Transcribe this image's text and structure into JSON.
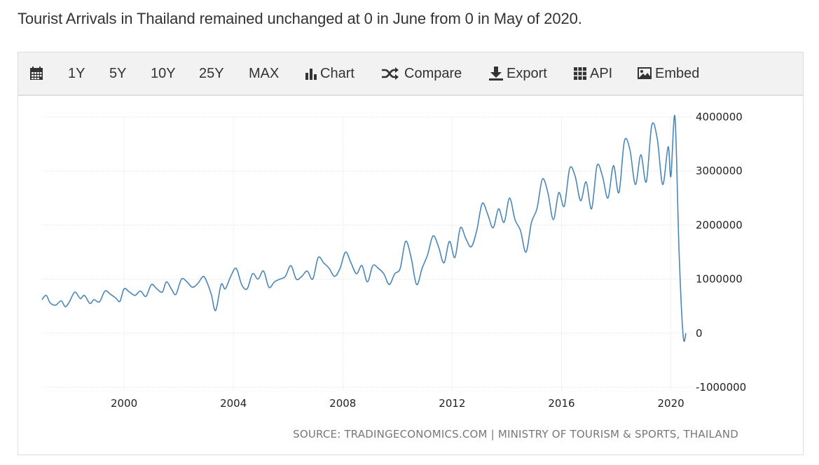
{
  "headline": "Tourist Arrivals in Thailand remained unchanged at 0 in June from 0 in May of 2020.",
  "toolbar": {
    "calendar_icon": "calendar-icon",
    "ranges": [
      "1Y",
      "5Y",
      "10Y",
      "25Y",
      "MAX"
    ],
    "chart_label": "Chart",
    "compare_label": "Compare",
    "export_label": "Export",
    "api_label": "API",
    "embed_label": "Embed"
  },
  "source": "SOURCE: TRADINGECONOMICS.COM | MINISTRY OF TOURISM & SPORTS, THAILAND",
  "chart_data": {
    "type": "line",
    "title": "",
    "xlabel": "",
    "ylabel": "",
    "x_ticks": [
      "2000",
      "2004",
      "2008",
      "2012",
      "2016",
      "2020"
    ],
    "y_ticks": [
      "4000000",
      "3000000",
      "2000000",
      "1000000",
      "0",
      "-1000000"
    ],
    "xlim": [
      1997.0,
      2020.6
    ],
    "ylim": [
      -1000000,
      4000000
    ],
    "grid": true,
    "line_color": "#4a86b8",
    "series": [
      {
        "x": [
          1997.0,
          1997.15,
          1997.3,
          1997.5,
          1997.7,
          1997.85,
          1998.0,
          1998.2,
          1998.4,
          1998.55,
          1998.75,
          1998.9,
          1999.1,
          1999.3,
          1999.5,
          1999.7,
          1999.85,
          2000.0,
          2000.2,
          2000.4,
          2000.6,
          2000.8,
          2001.0,
          2001.2,
          2001.4,
          2001.55,
          2001.75,
          2001.9,
          2002.1,
          2002.3,
          2002.5,
          2002.7,
          2002.9,
          2003.05,
          2003.2,
          2003.35,
          2003.55,
          2003.7,
          2003.9,
          2004.1,
          2004.3,
          2004.5,
          2004.7,
          2004.9,
          2005.1,
          2005.3,
          2005.5,
          2005.7,
          2005.9,
          2006.1,
          2006.3,
          2006.5,
          2006.7,
          2006.9,
          2007.1,
          2007.3,
          2007.5,
          2007.7,
          2007.9,
          2008.1,
          2008.3,
          2008.5,
          2008.7,
          2008.9,
          2009.1,
          2009.3,
          2009.5,
          2009.7,
          2009.9,
          2010.1,
          2010.3,
          2010.5,
          2010.7,
          2010.9,
          2011.1,
          2011.3,
          2011.5,
          2011.7,
          2011.9,
          2012.1,
          2012.3,
          2012.5,
          2012.7,
          2012.9,
          2013.1,
          2013.3,
          2013.5,
          2013.7,
          2013.9,
          2014.1,
          2014.3,
          2014.5,
          2014.7,
          2014.9,
          2015.1,
          2015.3,
          2015.5,
          2015.7,
          2015.9,
          2016.1,
          2016.3,
          2016.5,
          2016.7,
          2016.9,
          2017.1,
          2017.3,
          2017.5,
          2017.7,
          2017.9,
          2018.1,
          2018.3,
          2018.5,
          2018.7,
          2018.9,
          2019.1,
          2019.3,
          2019.5,
          2019.7,
          2019.9,
          2020.0,
          2020.15,
          2020.3,
          2020.45,
          2020.55
        ],
        "values": [
          620000,
          700000,
          560000,
          520000,
          600000,
          490000,
          580000,
          760000,
          640000,
          700000,
          550000,
          620000,
          580000,
          780000,
          720000,
          650000,
          590000,
          820000,
          760000,
          700000,
          780000,
          680000,
          900000,
          820000,
          760000,
          950000,
          800000,
          720000,
          1000000,
          950000,
          850000,
          920000,
          1050000,
          920000,
          700000,
          420000,
          900000,
          820000,
          1050000,
          1200000,
          900000,
          820000,
          1100000,
          1000000,
          1150000,
          850000,
          950000,
          1000000,
          1050000,
          1250000,
          1000000,
          1050000,
          1150000,
          1000000,
          1400000,
          1300000,
          1200000,
          1050000,
          1200000,
          1500000,
          1300000,
          1100000,
          1250000,
          950000,
          1250000,
          1200000,
          1100000,
          900000,
          1100000,
          1200000,
          1700000,
          1400000,
          900000,
          1200000,
          1450000,
          1800000,
          1600000,
          1300000,
          1700000,
          1400000,
          1950000,
          1750000,
          1600000,
          1900000,
          2400000,
          2200000,
          1950000,
          2300000,
          2050000,
          2500000,
          2100000,
          1900000,
          1500000,
          2050000,
          2300000,
          2850000,
          2600000,
          2100000,
          2600000,
          2350000,
          3050000,
          2900000,
          2450000,
          2800000,
          2300000,
          3100000,
          2900000,
          2500000,
          3100000,
          2600000,
          3550000,
          3400000,
          2750000,
          3300000,
          2800000,
          3850000,
          3600000,
          2750000,
          3450000,
          2900000,
          4000000,
          1500000,
          -50000,
          0
        ]
      }
    ]
  }
}
